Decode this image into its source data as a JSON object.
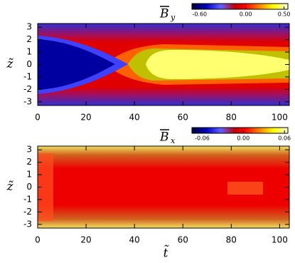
{
  "chart_data": [
    {
      "type": "heatmap",
      "title": {
        "symbol": "B",
        "subscript": "y"
      },
      "ylabel": "z̃",
      "xlim": [
        0,
        104
      ],
      "ylim": [
        -3.3,
        3.3
      ],
      "xticks": [
        0,
        20,
        40,
        60,
        80,
        100
      ],
      "yticks": [
        3,
        2,
        1,
        0,
        -1,
        -2,
        -3
      ],
      "colorbar": {
        "lim": [
          -0.7,
          0.55
        ],
        "ticks": [
          {
            "value": -0.6,
            "label": "-0.60"
          },
          {
            "value": 0,
            "label": "0.00"
          },
          {
            "value": 0.5,
            "label": "0.50"
          }
        ]
      }
    },
    {
      "type": "heatmap",
      "title": {
        "symbol": "B",
        "subscript": "x"
      },
      "ylabel": "z̃",
      "xlabel": "t̃",
      "xlim": [
        0,
        104
      ],
      "ylim": [
        -3.3,
        3.3
      ],
      "xticks": [
        0,
        20,
        40,
        60,
        80,
        100
      ],
      "yticks": [
        3,
        2,
        1,
        0,
        -1,
        -2,
        -3
      ],
      "colorbar": {
        "lim": [
          -0.075,
          0.065
        ],
        "ticks": [
          {
            "value": -0.06,
            "label": "-0.06"
          },
          {
            "value": 0,
            "label": "0.00"
          },
          {
            "value": 0.06,
            "label": "0.06"
          }
        ]
      }
    }
  ]
}
